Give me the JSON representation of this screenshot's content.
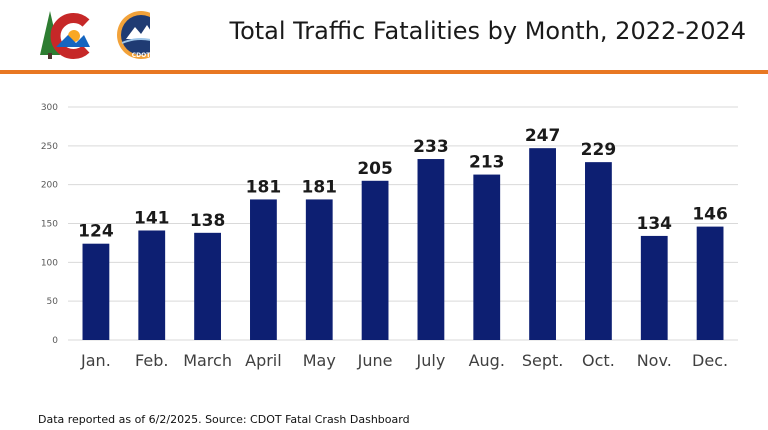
{
  "header": {
    "title": "Total Traffic Fatalities by Month, 2022-2024",
    "logo_text": "CDOT"
  },
  "colors": {
    "bar": "#0d1f72",
    "accent": "#e87722",
    "grid": "#d9d9d9"
  },
  "chart_data": {
    "type": "bar",
    "title": "Total Traffic Fatalities by Month, 2022-2024",
    "xlabel": "",
    "ylabel": "",
    "categories": [
      "Jan.",
      "Feb.",
      "March",
      "April",
      "May",
      "June",
      "July",
      "Aug.",
      "Sept.",
      "Oct.",
      "Nov.",
      "Dec."
    ],
    "values": [
      124,
      141,
      138,
      181,
      181,
      205,
      233,
      213,
      247,
      229,
      134,
      146
    ],
    "ylim": [
      0,
      300
    ],
    "yticks": [
      0,
      50,
      100,
      150,
      200,
      250,
      300
    ],
    "grid": true,
    "data_labels": true
  },
  "footnote": "Data reported as of 6/2/2025. Source: CDOT Fatal Crash Dashboard"
}
